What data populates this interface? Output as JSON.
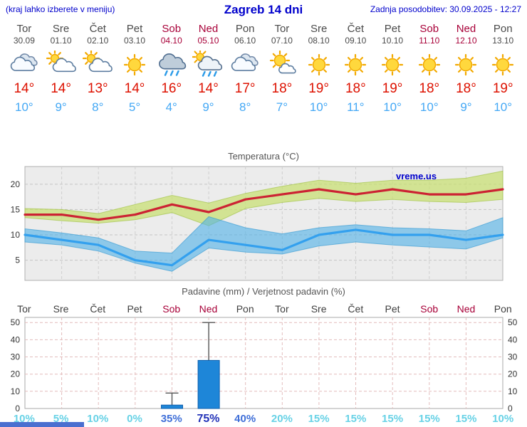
{
  "header": {
    "left": "(kraj lahko izberete v meniju)",
    "title": "Zagreb 14 dni",
    "right": "Zadnja posodobitev: 30.09.2025 - 12:27"
  },
  "watermark": "vreme.us",
  "days": [
    {
      "name": "Tor",
      "date": "30.09",
      "weekend": false,
      "icon": "cloudy",
      "high": "14°",
      "low": "10°"
    },
    {
      "name": "Sre",
      "date": "01.10",
      "weekend": false,
      "icon": "partly-cloudy",
      "high": "14°",
      "low": "9°"
    },
    {
      "name": "Čet",
      "date": "02.10",
      "weekend": false,
      "icon": "partly-cloudy",
      "high": "13°",
      "low": "8°"
    },
    {
      "name": "Pet",
      "date": "03.10",
      "weekend": false,
      "icon": "sunny",
      "high": "14°",
      "low": "5°"
    },
    {
      "name": "Sob",
      "date": "04.10",
      "weekend": true,
      "icon": "rain",
      "high": "16°",
      "low": "4°"
    },
    {
      "name": "Ned",
      "date": "05.10",
      "weekend": true,
      "icon": "showers",
      "high": "14°",
      "low": "9°"
    },
    {
      "name": "Pon",
      "date": "06.10",
      "weekend": false,
      "icon": "cloudy",
      "high": "17°",
      "low": "8°"
    },
    {
      "name": "Tor",
      "date": "07.10",
      "weekend": false,
      "icon": "mostly-sunny",
      "high": "18°",
      "low": "7°"
    },
    {
      "name": "Sre",
      "date": "08.10",
      "weekend": false,
      "icon": "sunny",
      "high": "19°",
      "low": "10°"
    },
    {
      "name": "Čet",
      "date": "09.10",
      "weekend": false,
      "icon": "sunny",
      "high": "18°",
      "low": "11°"
    },
    {
      "name": "Pet",
      "date": "10.10",
      "weekend": false,
      "icon": "sunny",
      "high": "19°",
      "low": "10°"
    },
    {
      "name": "Sob",
      "date": "11.10",
      "weekend": true,
      "icon": "sunny",
      "high": "18°",
      "low": "10°"
    },
    {
      "name": "Ned",
      "date": "12.10",
      "weekend": true,
      "icon": "sunny",
      "high": "18°",
      "low": "9°"
    },
    {
      "name": "Pon",
      "date": "13.10",
      "weekend": false,
      "icon": "sunny",
      "high": "19°",
      "low": "10°"
    }
  ],
  "chart_data": [
    {
      "type": "line",
      "title": "Temperatura (°C)",
      "x_labels": [
        "Tor",
        "Sre",
        "Čet",
        "Pet",
        "Sob",
        "Ned",
        "Pon",
        "Tor",
        "Sre",
        "Čet",
        "Pet",
        "Sob",
        "Ned",
        "Pon"
      ],
      "yticks": [
        5,
        10,
        15,
        20
      ],
      "ylim": [
        1,
        23.5
      ],
      "grid": true,
      "series": [
        {
          "name": "max-temp",
          "color": "#cc2233",
          "values": [
            14,
            14,
            13,
            14,
            16,
            14.5,
            17,
            18,
            19,
            18,
            19,
            18,
            18,
            19
          ]
        },
        {
          "name": "min-temp",
          "color": "#33a0ee",
          "values": [
            10,
            9,
            8,
            5,
            4,
            9,
            8,
            7,
            10,
            11,
            10,
            10,
            9,
            10
          ]
        }
      ],
      "bands": [
        {
          "name": "max-temp-range",
          "color": "#c8e06e",
          "edge": "#9cbf3e",
          "opacity": 0.7,
          "upper": [
            15.2,
            15.0,
            14.2,
            16.0,
            17.8,
            16.3,
            18.2,
            19.6,
            20.8,
            20.2,
            20.8,
            20.8,
            21.2,
            22.6
          ],
          "lower": [
            13.4,
            12.8,
            12.3,
            13.0,
            14.4,
            11.8,
            15.2,
            16.4,
            17.2,
            16.6,
            17.0,
            16.6,
            16.4,
            17.0
          ]
        },
        {
          "name": "min-temp-range",
          "color": "#4fb0e8",
          "edge": "#2f96d0",
          "opacity": 0.6,
          "upper": [
            11.2,
            10.4,
            9.4,
            6.8,
            6.4,
            13.6,
            11.4,
            10.2,
            11.4,
            12.0,
            11.4,
            11.2,
            10.8,
            13.4
          ],
          "lower": [
            8.6,
            8.0,
            6.8,
            4.4,
            2.8,
            7.4,
            6.6,
            6.2,
            7.8,
            8.6,
            8.0,
            7.6,
            7.2,
            9.4
          ]
        }
      ]
    },
    {
      "type": "bar",
      "title": "Padavine (mm) / Verjetnost padavin (%)",
      "categories": [
        {
          "label": "Tor",
          "weekend": false
        },
        {
          "label": "Sre",
          "weekend": false
        },
        {
          "label": "Čet",
          "weekend": false
        },
        {
          "label": "Pet",
          "weekend": false
        },
        {
          "label": "Sob",
          "weekend": true
        },
        {
          "label": "Ned",
          "weekend": true
        },
        {
          "label": "Pon",
          "weekend": false
        },
        {
          "label": "Tor",
          "weekend": false
        },
        {
          "label": "Sre",
          "weekend": false
        },
        {
          "label": "Čet",
          "weekend": false
        },
        {
          "label": "Pet",
          "weekend": false
        },
        {
          "label": "Sob",
          "weekend": true
        },
        {
          "label": "Ned",
          "weekend": true
        },
        {
          "label": "Pon",
          "weekend": false
        }
      ],
      "values": [
        0,
        0,
        0,
        0,
        2,
        28,
        0,
        0,
        0,
        0,
        0,
        0,
        0,
        0
      ],
      "whiskers": [
        0,
        0,
        0,
        0,
        9,
        50,
        0,
        0,
        0,
        0,
        0,
        0,
        0,
        0
      ],
      "yticks": [
        0,
        10,
        20,
        30,
        40,
        50
      ],
      "ylim": [
        0,
        53
      ],
      "bar_color": "#1e86d8",
      "probabilities": [
        {
          "label": "10%",
          "color": "#68d2e6",
          "strong": false
        },
        {
          "label": "5%",
          "color": "#68d2e6",
          "strong": false
        },
        {
          "label": "10%",
          "color": "#68d2e6",
          "strong": false
        },
        {
          "label": "0%",
          "color": "#68d2e6",
          "strong": false
        },
        {
          "label": "35%",
          "color": "#3f6fd8",
          "strong": false
        },
        {
          "label": "75%",
          "color": "#2333b8",
          "strong": true
        },
        {
          "label": "40%",
          "color": "#3f6fd8",
          "strong": false
        },
        {
          "label": "20%",
          "color": "#68d2e6",
          "strong": false
        },
        {
          "label": "15%",
          "color": "#68d2e6",
          "strong": false
        },
        {
          "label": "15%",
          "color": "#68d2e6",
          "strong": false
        },
        {
          "label": "15%",
          "color": "#68d2e6",
          "strong": false
        },
        {
          "label": "15%",
          "color": "#68d2e6",
          "strong": false
        },
        {
          "label": "15%",
          "color": "#68d2e6",
          "strong": false
        },
        {
          "label": "10%",
          "color": "#68d2e6",
          "strong": false
        }
      ]
    }
  ],
  "colors": {
    "header_blue": "#0000cc",
    "weekend_red": "#a80038",
    "high_temp_red": "#dd1100",
    "low_temp_blue": "#44a8f5"
  }
}
